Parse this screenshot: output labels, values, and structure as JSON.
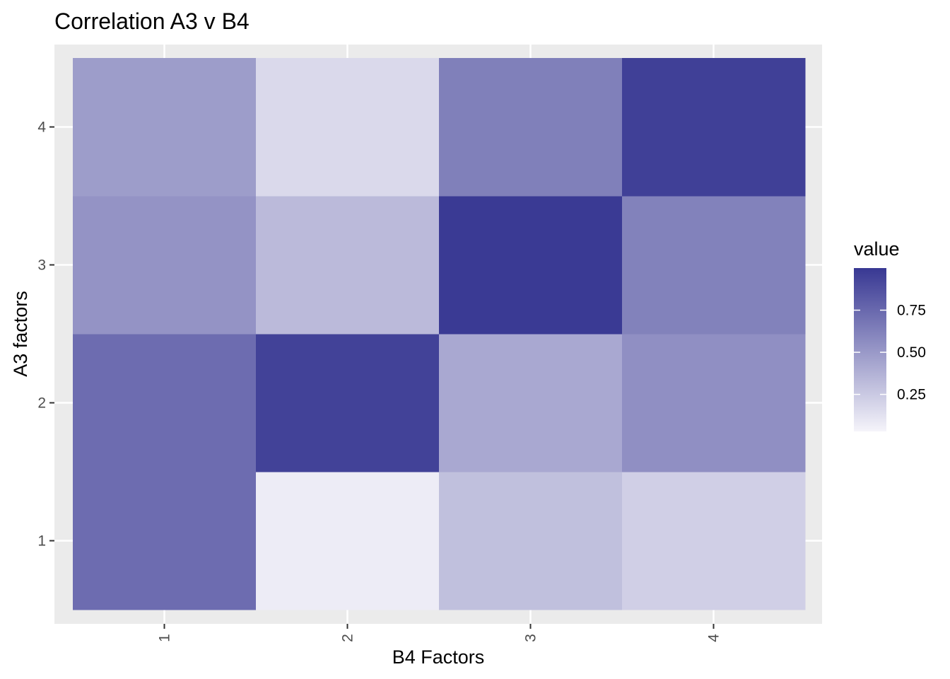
{
  "chart_data": {
    "type": "heatmap",
    "title": "Correlation A3 v B4",
    "xlabel": "B4 Factors",
    "ylabel": "A3 factors",
    "x_categories": [
      "1",
      "2",
      "3",
      "4"
    ],
    "y_categories": [
      "1",
      "2",
      "3",
      "4"
    ],
    "cells": [
      {
        "x": "1",
        "y": "1",
        "value": 0.73
      },
      {
        "x": "2",
        "y": "1",
        "value": 0.07
      },
      {
        "x": "3",
        "y": "1",
        "value": 0.3
      },
      {
        "x": "4",
        "y": "1",
        "value": 0.22
      },
      {
        "x": "1",
        "y": "2",
        "value": 0.73
      },
      {
        "x": "2",
        "y": "2",
        "value": 0.95
      },
      {
        "x": "3",
        "y": "2",
        "value": 0.42
      },
      {
        "x": "4",
        "y": "2",
        "value": 0.55
      },
      {
        "x": "1",
        "y": "3",
        "value": 0.53
      },
      {
        "x": "2",
        "y": "3",
        "value": 0.33
      },
      {
        "x": "3",
        "y": "3",
        "value": 0.99
      },
      {
        "x": "4",
        "y": "3",
        "value": 0.62
      },
      {
        "x": "1",
        "y": "4",
        "value": 0.48
      },
      {
        "x": "2",
        "y": "4",
        "value": 0.17
      },
      {
        "x": "3",
        "y": "4",
        "value": 0.63
      },
      {
        "x": "4",
        "y": "4",
        "value": 0.96
      }
    ],
    "legend": {
      "title": "value",
      "breaks": [
        0.25,
        0.5,
        0.75
      ],
      "labels": [
        "0.25",
        "0.50",
        "0.75"
      ],
      "range": [
        0.03,
        1.0
      ],
      "low_color": "#f5f4fa",
      "high_color": "#383893",
      "placement": "right"
    },
    "panel_background": "#ebebeb",
    "grid": true
  }
}
